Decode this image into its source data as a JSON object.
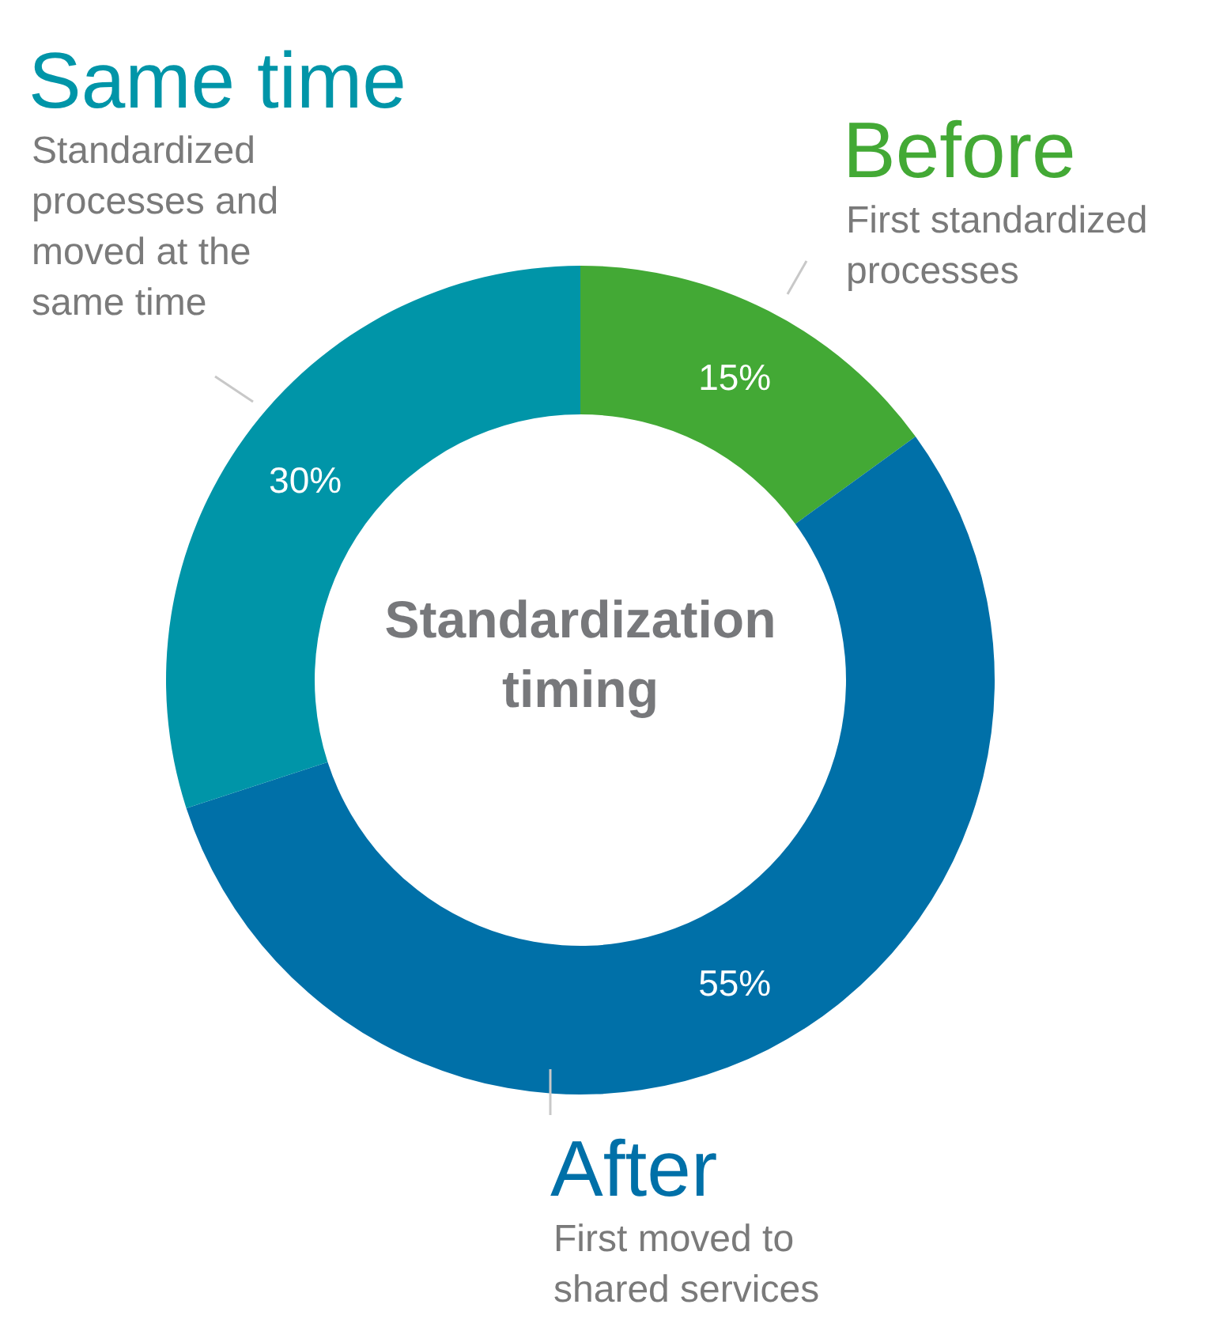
{
  "chart_data": {
    "type": "donut",
    "title": "Standardization timing",
    "categories": [
      "Before",
      "After",
      "Same time"
    ],
    "values": [
      15,
      55,
      30
    ],
    "value_labels": [
      "15%",
      "55%",
      "30%"
    ],
    "colors": [
      "#43a935",
      "#0070a8",
      "#0095a8"
    ],
    "annotations": [
      "First standardized processes",
      "First moved to shared services",
      "Standardized processes and moved at the same time"
    ]
  }
}
